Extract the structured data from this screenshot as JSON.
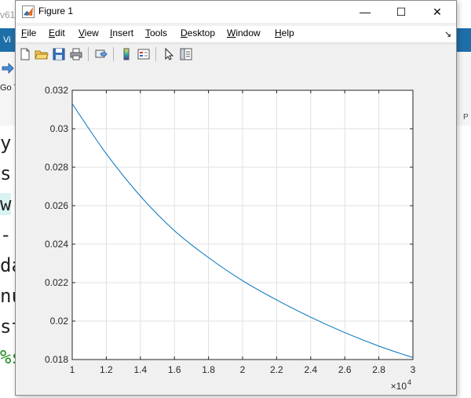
{
  "background_app": {
    "title_fragment": "v61",
    "ribbon_tab": "Vi",
    "go_label": "Go T",
    "right_label": "P",
    "editor_lines": [
      {
        "text": "y",
        "style": "plain"
      },
      {
        "text": "s",
        "style": "plain"
      },
      {
        "text": "w",
        "style": "highlight"
      },
      {
        "text": "-",
        "style": "plain"
      },
      {
        "text": "da",
        "style": "plain"
      },
      {
        "text": "nu",
        "style": "plain"
      },
      {
        "text": "st",
        "style": "plain"
      },
      {
        "text": "%s",
        "style": "green"
      }
    ]
  },
  "window": {
    "title": "Figure 1",
    "buttons": {
      "minimize": "—",
      "maximize": "☐",
      "close": "✕"
    }
  },
  "menu": {
    "items": [
      {
        "pre": "",
        "u": "F",
        "post": "ile"
      },
      {
        "pre": "",
        "u": "E",
        "post": "dit"
      },
      {
        "pre": "",
        "u": "V",
        "post": "iew"
      },
      {
        "pre": "",
        "u": "I",
        "post": "nsert"
      },
      {
        "pre": "",
        "u": "T",
        "post": "ools"
      },
      {
        "pre": "",
        "u": "D",
        "post": "esktop"
      },
      {
        "pre": "",
        "u": "W",
        "post": "indow"
      },
      {
        "pre": "",
        "u": "H",
        "post": "elp"
      }
    ],
    "dock_glyph": "↘"
  },
  "toolbar": {
    "tools": [
      "new-figure-icon",
      "open-file-icon",
      "save-icon",
      "print-icon",
      "link-plot-icon",
      "colorbar-icon",
      "legend-icon",
      "edit-plot-arrow-icon",
      "property-inspector-icon"
    ]
  },
  "chart_data": {
    "type": "line",
    "title": "",
    "xlabel": "",
    "ylabel": "",
    "x_exponent_label": "×10",
    "x_exponent": "4",
    "xlim": [
      10000,
      30000
    ],
    "ylim": [
      0.018,
      0.032
    ],
    "xticks": [
      10000,
      12000,
      14000,
      16000,
      18000,
      20000,
      22000,
      24000,
      26000,
      28000,
      30000
    ],
    "xtick_labels": [
      "1",
      "1.2",
      "1.4",
      "1.6",
      "1.8",
      "2",
      "2.2",
      "2.4",
      "2.6",
      "2.8",
      "3"
    ],
    "yticks": [
      0.018,
      0.02,
      0.022,
      0.024,
      0.026,
      0.028,
      0.03,
      0.032
    ],
    "ytick_labels": [
      "0.018",
      "0.02",
      "0.022",
      "0.024",
      "0.026",
      "0.028",
      "0.03",
      "0.032"
    ],
    "grid": true,
    "line_color": "#0072BD",
    "series": [
      {
        "x": [
          10000,
          12000,
          14000,
          16000,
          18000,
          20000,
          22000,
          24000,
          26000,
          28000,
          30000
        ],
        "y": [
          0.0313,
          0.0287,
          0.0265,
          0.0247,
          0.0233,
          0.0221,
          0.0211,
          0.0202,
          0.0194,
          0.0187,
          0.0181
        ]
      }
    ]
  }
}
